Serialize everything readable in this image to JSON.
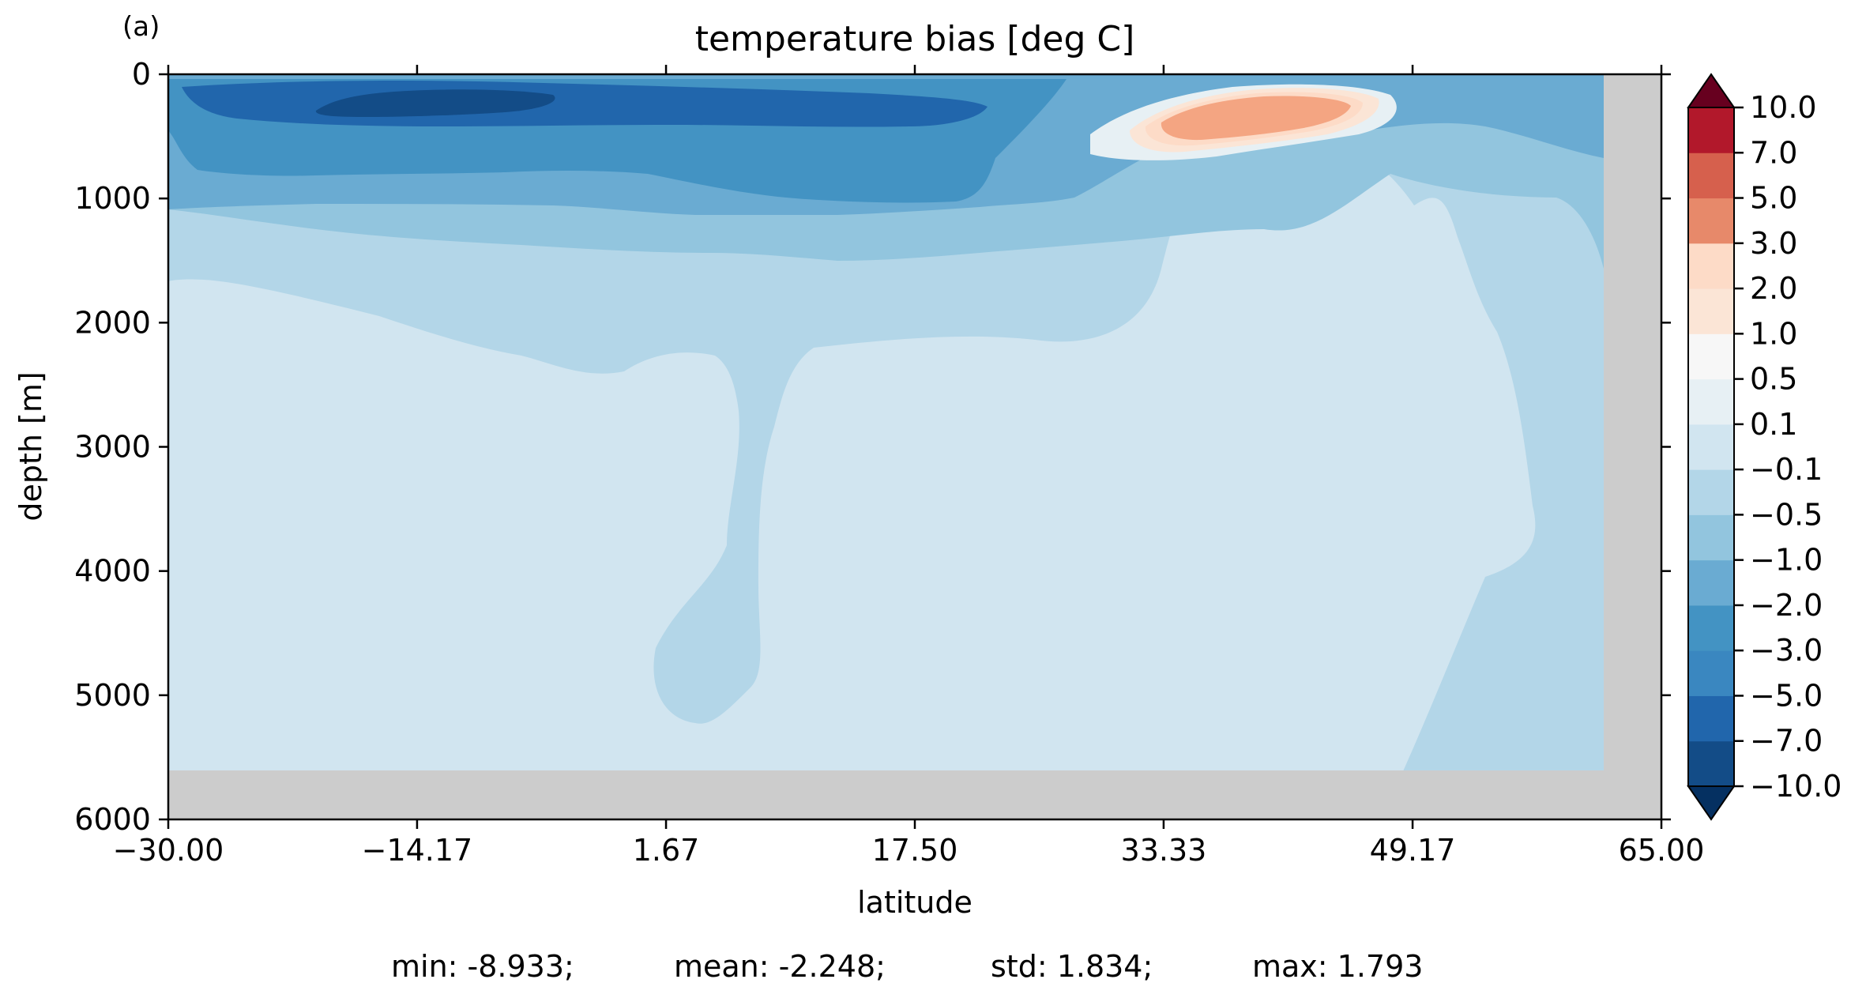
{
  "panel_label": "(a)",
  "stats": {
    "min": "min: -8.933;",
    "mean": "mean: -2.248;",
    "std": "std: 1.834;",
    "max": "max: 1.793"
  },
  "colors": {
    "no_data": "#cccccc",
    "levels": [
      "#053061",
      "#134c87",
      "#2166ac",
      "#3a87c0",
      "#4393c3",
      "#6aabd2",
      "#92c5de",
      "#b3d6e8",
      "#d1e5f0",
      "#e7f0f4",
      "#f7f7f7",
      "#fbe5d6",
      "#fddbc7",
      "#f4a582",
      "#e7896a",
      "#d6604d",
      "#c0333f",
      "#b2182b",
      "#67001f"
    ]
  },
  "chart_data": {
    "type": "heatmap",
    "subtype": "filled-contour section",
    "title": "temperature bias [deg C]",
    "xlabel": "latitude",
    "ylabel": "depth [m]",
    "xlim": [
      -30.0,
      65.0
    ],
    "ylim": [
      6000,
      0
    ],
    "y_inverted": true,
    "xticks": [
      "−30.00",
      "−14.17",
      "1.67",
      "17.50",
      "33.33",
      "49.17",
      "65.00"
    ],
    "xtick_values": [
      -30.0,
      -14.17,
      1.67,
      17.5,
      33.33,
      49.17,
      65.0
    ],
    "yticks": [
      "0",
      "1000",
      "2000",
      "3000",
      "4000",
      "5000",
      "6000"
    ],
    "ytick_values": [
      0,
      1000,
      2000,
      3000,
      4000,
      5000,
      6000
    ],
    "colorbar": {
      "levels": [
        -10.0,
        -7.0,
        -5.0,
        -3.0,
        -2.0,
        -1.0,
        -0.5,
        -0.1,
        0.1,
        0.5,
        1.0,
        2.0,
        3.0,
        5.0,
        7.0,
        10.0
      ],
      "tick_labels": [
        "−10.0",
        "−7.0",
        "−5.0",
        "−3.0",
        "−2.0",
        "−1.0",
        "−0.5",
        "−0.1",
        "0.1",
        "0.5",
        "1.0",
        "2.0",
        "3.0",
        "5.0",
        "7.0",
        "10.0"
      ],
      "extend": "both"
    },
    "no_data_regions": [
      {
        "lat_range": [
          61.0,
          65.0
        ],
        "depth_range": [
          0,
          6000
        ]
      },
      {
        "lat_range": [
          -30.0,
          65.0
        ],
        "depth_range": [
          5600,
          6000
        ]
      }
    ],
    "features": [
      {
        "desc": "cold core",
        "bias_band": [
          -10.0,
          -7.0
        ],
        "lat_range": [
          -20,
          -2
        ],
        "depth_range": [
          100,
          350
        ]
      },
      {
        "desc": "warm anomaly",
        "bias_band": [
          1.0,
          2.0
        ],
        "lat_range": [
          35,
          45
        ],
        "depth_range": [
          80,
          500
        ]
      }
    ]
  }
}
